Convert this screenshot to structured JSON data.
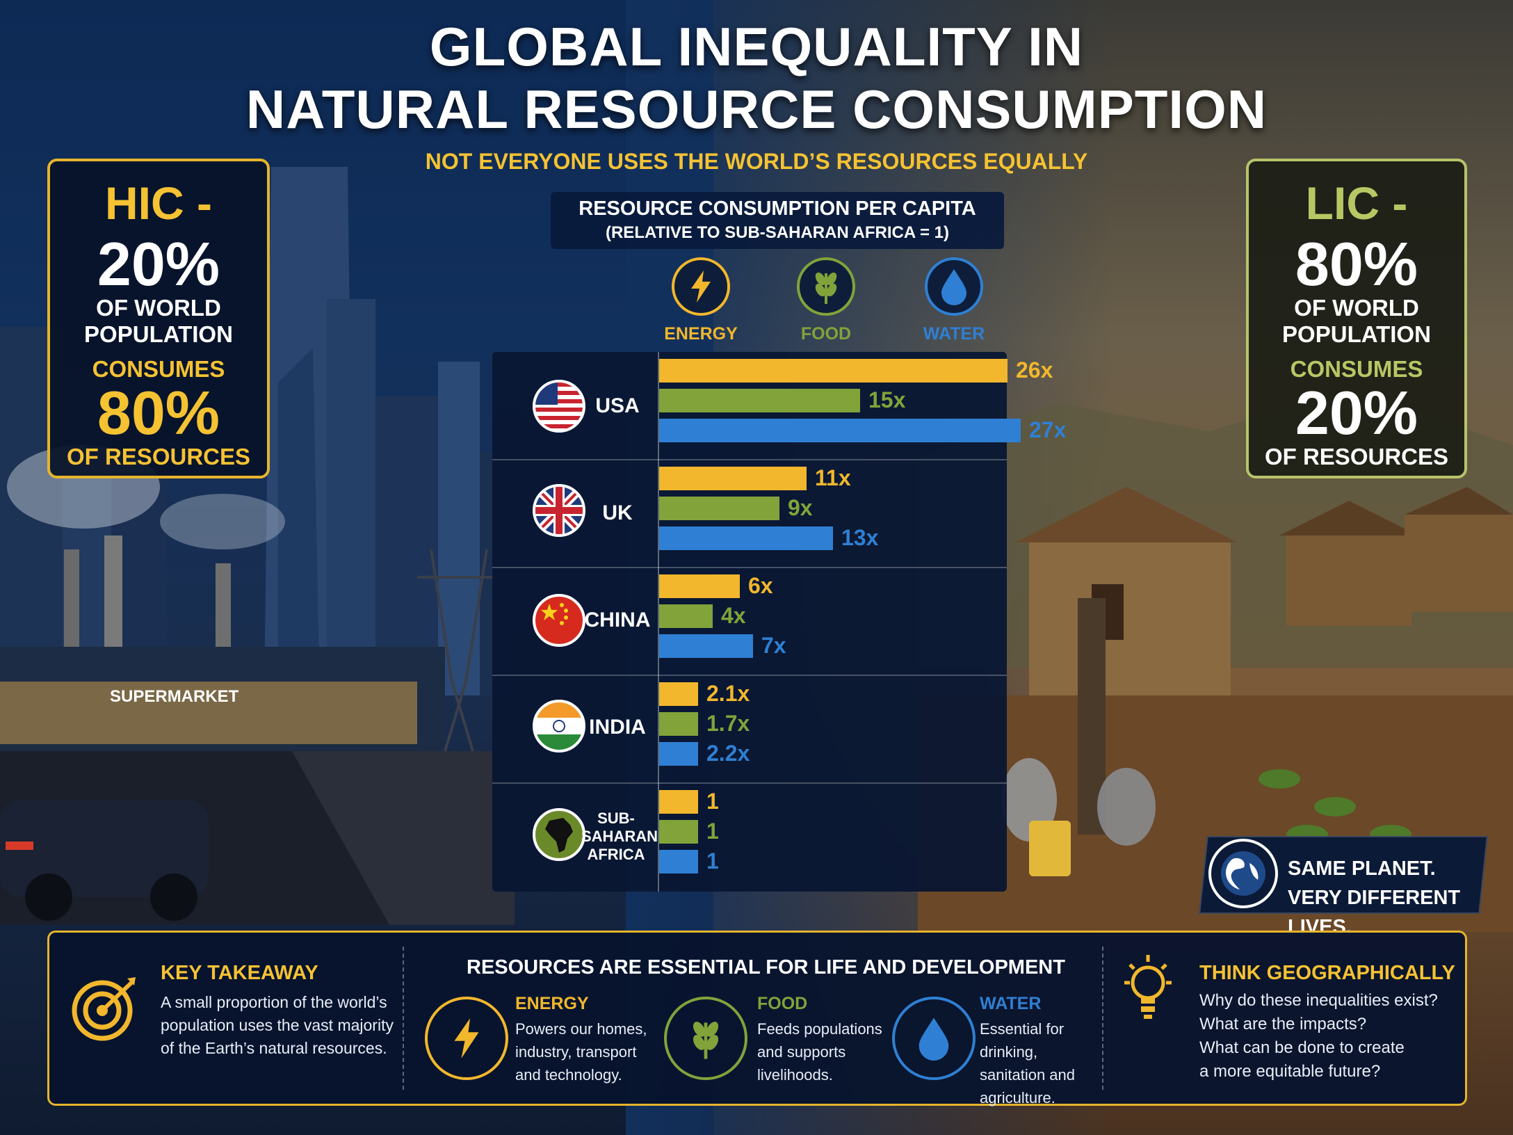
{
  "title": {
    "line1": "GLOBAL INEQUALITY IN",
    "line2": "NATURAL RESOURCE CONSUMPTION"
  },
  "subtitle": "NOT EVERYONE USES THE WORLD’S RESOURCES EQUALLY",
  "hic": {
    "heading": "HIC -",
    "population_pct": "20%",
    "of_world": "OF WORLD",
    "population": "POPULATION",
    "consumes": "CONSUMES",
    "resources_pct": "80%",
    "of_resources": "OF RESOURCES"
  },
  "lic": {
    "heading": "LIC -",
    "population_pct": "80%",
    "of_world": "OF WORLD",
    "population": "POPULATION",
    "consumes": "CONSUMES",
    "resources_pct": "20%",
    "of_resources": "OF RESOURCES"
  },
  "supermarket_sign": "SUPERMARKET",
  "chart_data": {
    "type": "bar",
    "orientation": "horizontal",
    "title": "RESOURCE CONSUMPTION PER CAPITA",
    "subtitle": "(RELATIVE TO SUB-SAHARAN AFRICA = 1)",
    "categories": [
      "USA",
      "UK",
      "CHINA",
      "INDIA",
      "SUB-SAHARAN AFRICA"
    ],
    "series": [
      {
        "name": "ENERGY",
        "color": "#f2b72c",
        "values": [
          26,
          11,
          6,
          2.1,
          1
        ],
        "labels": [
          "26x",
          "11x",
          "6x",
          "2.1x",
          "1"
        ]
      },
      {
        "name": "FOOD",
        "color": "#82a33a",
        "values": [
          15,
          9,
          4,
          1.7,
          1
        ],
        "labels": [
          "15x",
          "9x",
          "4x",
          "1.7x",
          "1"
        ]
      },
      {
        "name": "WATER",
        "color": "#2f80d4",
        "values": [
          27,
          13,
          7,
          2.2,
          1
        ],
        "labels": [
          "27x",
          "13x",
          "7x",
          "2.2x",
          "1"
        ]
      }
    ],
    "xlim": [
      0,
      27
    ],
    "legend_placement": "top",
    "icons": [
      "lightning-icon",
      "wheat-icon",
      "water-drop-icon"
    ]
  },
  "badge": {
    "line1": "SAME PLANET.",
    "line2": "VERY DIFFERENT LIVES."
  },
  "bottom": {
    "key_takeaway": {
      "title": "KEY TAKEAWAY",
      "text": "A small proportion of the world’s population uses the vast majority of the Earth’s natural resources."
    },
    "resources": {
      "title": "RESOURCES ARE ESSENTIAL FOR LIFE AND DEVELOPMENT",
      "energy": {
        "title": "ENERGY",
        "text": "Powers our homes, industry, transport and technology."
      },
      "food": {
        "title": "FOOD",
        "text": "Feeds populations and supports livelihoods."
      },
      "water": {
        "title": "WATER",
        "text": "Essential for drinking, sanitation and agriculture."
      }
    },
    "think": {
      "title": "THINK GEOGRAPHICALLY",
      "q1": "Why do these inequalities exist?",
      "q2": "What are the impacts?",
      "q3": "What can be done to create",
      "q4": "a more equitable future?"
    }
  }
}
